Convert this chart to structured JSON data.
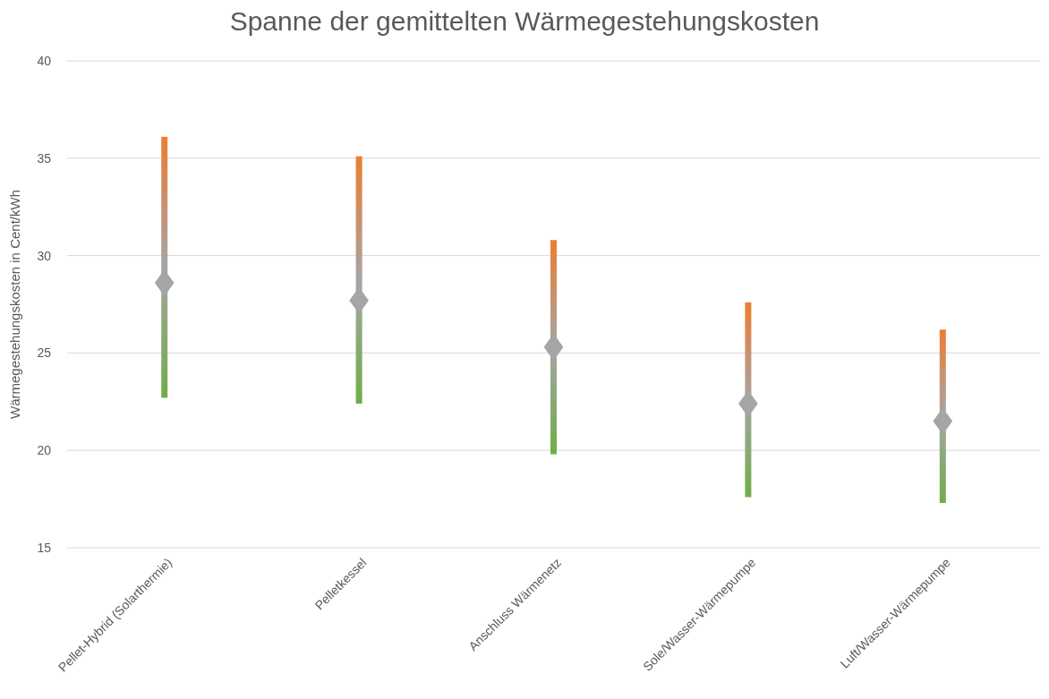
{
  "chart_data": {
    "type": "bar",
    "title": "Spanne der gemittelten Wärmegestehungskosten",
    "ylabel": "Wärmegestehungskosten in Cent/kWh",
    "categories": [
      "Pellet-Hybrid (Solarthermie)",
      "Pelletkessel",
      "Anschluss Wärmenetz",
      "Sole/Wasser-Wärmepumpe",
      "Luft/Wasser-Wärmepumpe"
    ],
    "series": [
      {
        "color": "#ed7d31",
        "base": [
          22.7,
          22.4,
          19.8,
          17.6,
          17.3
        ],
        "values": [
          13.4,
          12.7,
          11.0,
          10.0,
          8.9
        ]
      },
      {
        "type": "scatter",
        "color": "#a5a5a5",
        "marker": "diamond",
        "x": [
          "Pellet-Hybrid (Solarthermie)",
          "Pelletkessel",
          "Anschluss Wärmenetz",
          "Sole/Wasser-Wärmepumpe",
          "Luft/Wasser-Wärmepumpe"
        ],
        "values": [
          28.6,
          27.7,
          25.3,
          22.4,
          21.5
        ]
      }
    ],
    "ylim": [
      15,
      40
    ],
    "yticks": [
      15,
      20,
      25,
      30,
      35,
      40
    ],
    "grid": "y"
  }
}
